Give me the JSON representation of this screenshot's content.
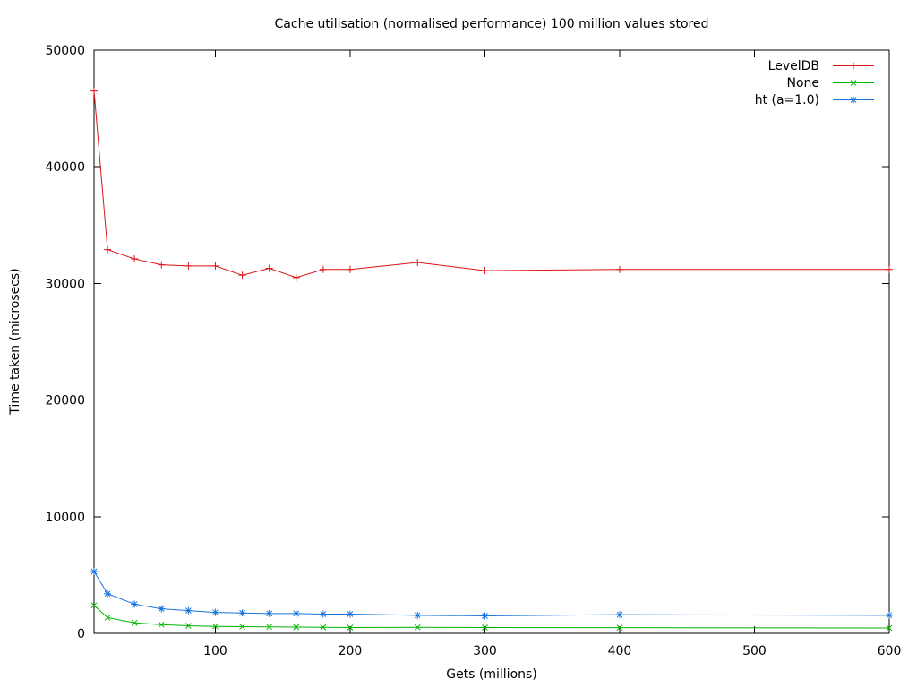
{
  "chart_data": {
    "type": "line",
    "title": "Cache utilisation (normalised performance) 100 million values stored",
    "xlabel": "Gets (millions)",
    "ylabel": "Time taken (microsecs)",
    "xlim": [
      10,
      600
    ],
    "ylim": [
      0,
      50000
    ],
    "x_ticks": [
      100,
      200,
      300,
      400,
      500,
      600
    ],
    "y_ticks": [
      0,
      10000,
      20000,
      30000,
      40000,
      50000
    ],
    "grid": false,
    "legend_position": "top-right-inside",
    "axis_color": "#000000",
    "background_color": "#ffffff",
    "x": [
      10,
      20,
      40,
      60,
      80,
      100,
      120,
      140,
      160,
      180,
      200,
      250,
      300,
      400,
      600
    ],
    "series": [
      {
        "name": "LevelDB",
        "color": "#dc1414",
        "marker": "plus",
        "values": [
          46500,
          32900,
          32100,
          31600,
          31500,
          31500,
          30700,
          31300,
          30500,
          31200,
          31200,
          31800,
          31100,
          31200,
          31200
        ]
      },
      {
        "name": "None",
        "color": "#00b400",
        "marker": "cross",
        "values": [
          2400,
          1350,
          900,
          750,
          650,
          600,
          580,
          560,
          540,
          520,
          500,
          520,
          500,
          490,
          460
        ]
      },
      {
        "name": "ht (a=1.0)",
        "color": "#1874dc",
        "marker": "asterisk",
        "values": [
          5300,
          3400,
          2500,
          2100,
          1950,
          1800,
          1750,
          1700,
          1700,
          1650,
          1650,
          1550,
          1500,
          1600,
          1550
        ]
      }
    ]
  }
}
